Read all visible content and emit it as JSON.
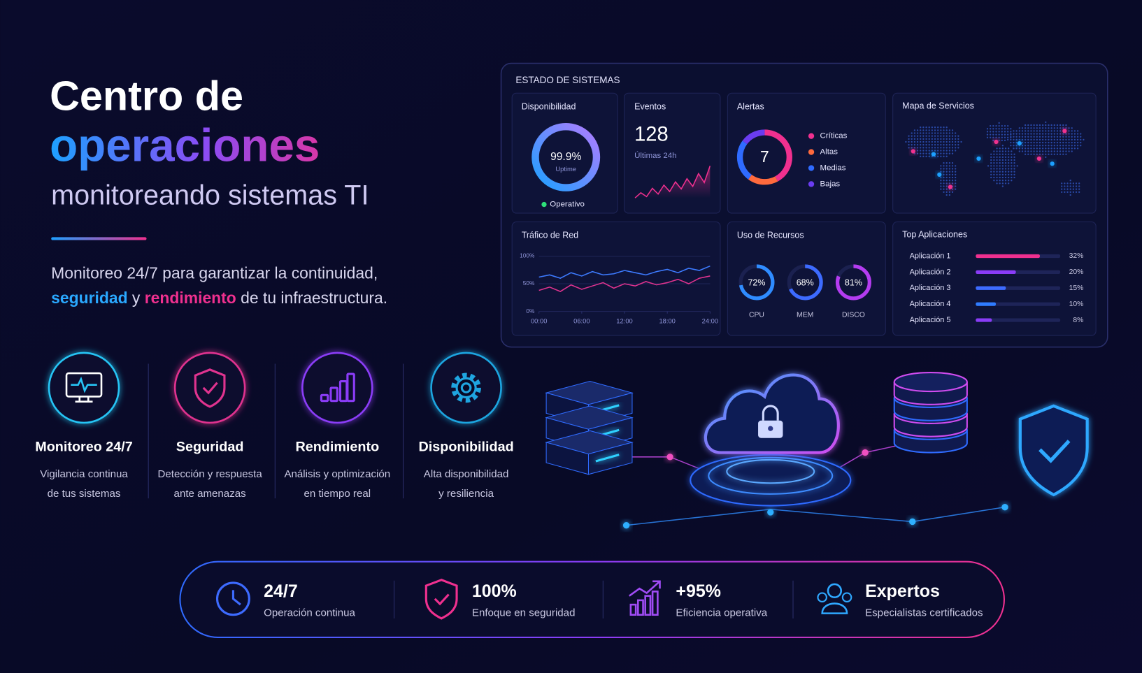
{
  "header": {
    "title_line1": "Centro de",
    "title_line2": "operaciones",
    "subtitle": "monitoreando sistemas TI"
  },
  "intro": {
    "line1": "Monitoreo 24/7 para garantizar la continuidad,",
    "line2_part1": "seguridad",
    "line2_part2": "y",
    "line2_part3": "rendimiento",
    "line2_part4": "de tu infraestructura."
  },
  "features": [
    {
      "title": "Monitoreo 24/7",
      "desc_line1": "Vigilancia continua",
      "desc_line2": "de tus sistemas"
    },
    {
      "title": "Seguridad",
      "desc_line1": "Detección y respuesta",
      "desc_line2": "ante amenazas"
    },
    {
      "title": "Rendimiento",
      "desc_line1": "Análisis y optimización",
      "desc_line2": "en tiempo real"
    },
    {
      "title": "Disponibilidad",
      "desc_line1": "Alta disponibilidad",
      "desc_line2": "y resiliencia"
    }
  ],
  "dashboard": {
    "title": "ESTADO DE SISTEMAS",
    "availability": {
      "title": "Disponibilidad",
      "value": 99.9,
      "value_label": "99.9%",
      "caption": "Uptime",
      "status": "Operativo"
    },
    "events": {
      "title": "Eventos",
      "value": 128,
      "caption": "Últimas 24h",
      "values": [
        20,
        28,
        22,
        35,
        26,
        40,
        30,
        45,
        34,
        50,
        38,
        58,
        44,
        70
      ]
    },
    "alerts": {
      "title": "Alertas",
      "value": 7,
      "legend": [
        "Críticas",
        "Altas",
        "Medias",
        "Bajas"
      ]
    },
    "map": {
      "title": "Mapa de Servicios"
    },
    "traffic": {
      "title": "Tráfico de Red",
      "type": "line",
      "x": [
        0,
        1.5,
        3,
        4.5,
        6,
        7.5,
        9,
        10.5,
        12,
        13.5,
        15,
        16.5,
        18,
        19.5,
        21,
        22.5,
        24
      ],
      "xlim": [
        0,
        24
      ],
      "xticks": [
        {
          "value": 0,
          "label": "00:00"
        },
        {
          "value": 6,
          "label": "06:00"
        },
        {
          "value": 12,
          "label": "12:00"
        },
        {
          "value": 18,
          "label": "18:00"
        },
        {
          "value": 24,
          "label": "24:00"
        }
      ],
      "ylim": [
        0,
        100
      ],
      "yticks": [
        {
          "value": 0,
          "label": "0%"
        },
        {
          "value": 50,
          "label": "50%"
        },
        {
          "value": 100,
          "label": "100%"
        }
      ],
      "series": [
        {
          "color": "#3d7bff",
          "values": [
            62,
            66,
            60,
            70,
            64,
            72,
            66,
            68,
            74,
            70,
            66,
            72,
            76,
            70,
            78,
            74,
            82
          ]
        },
        {
          "color": "#e0338f",
          "values": [
            38,
            44,
            36,
            48,
            40,
            46,
            52,
            42,
            50,
            46,
            54,
            48,
            52,
            58,
            50,
            60,
            64
          ]
        }
      ]
    },
    "resources": {
      "title": "Uso de Recursos",
      "items": [
        {
          "label": "CPU",
          "value": 72,
          "value_label": "72%",
          "color": "#2f8cff"
        },
        {
          "label": "MEM",
          "value": 68,
          "value_label": "68%",
          "color": "#3d6bff"
        },
        {
          "label": "DISCO",
          "value": 81,
          "value_label": "81%",
          "color": "#b43cf0"
        }
      ]
    },
    "top_apps": {
      "title": "Top Aplicaciones",
      "items": [
        {
          "label": "Aplicación 1",
          "value": 32,
          "value_label": "32%",
          "color": "#f0308f"
        },
        {
          "label": "Aplicación 2",
          "value": 20,
          "value_label": "20%",
          "color": "#8a3cf7"
        },
        {
          "label": "Aplicación 3",
          "value": 15,
          "value_label": "15%",
          "color": "#3d6bff"
        },
        {
          "label": "Aplicación 4",
          "value": 10,
          "value_label": "10%",
          "color": "#2f7cff"
        },
        {
          "label": "Aplicación 5",
          "value": 8,
          "value_label": "8%",
          "color": "#8a3cf7"
        }
      ]
    }
  },
  "stats": [
    {
      "value": "24/7",
      "label": "Operación continua"
    },
    {
      "value": "100%",
      "label": "Enfoque en seguridad"
    },
    {
      "value": "+95%",
      "label": "Eficiencia operativa"
    },
    {
      "value": "Expertos",
      "label": "Especialistas certificados"
    }
  ]
}
